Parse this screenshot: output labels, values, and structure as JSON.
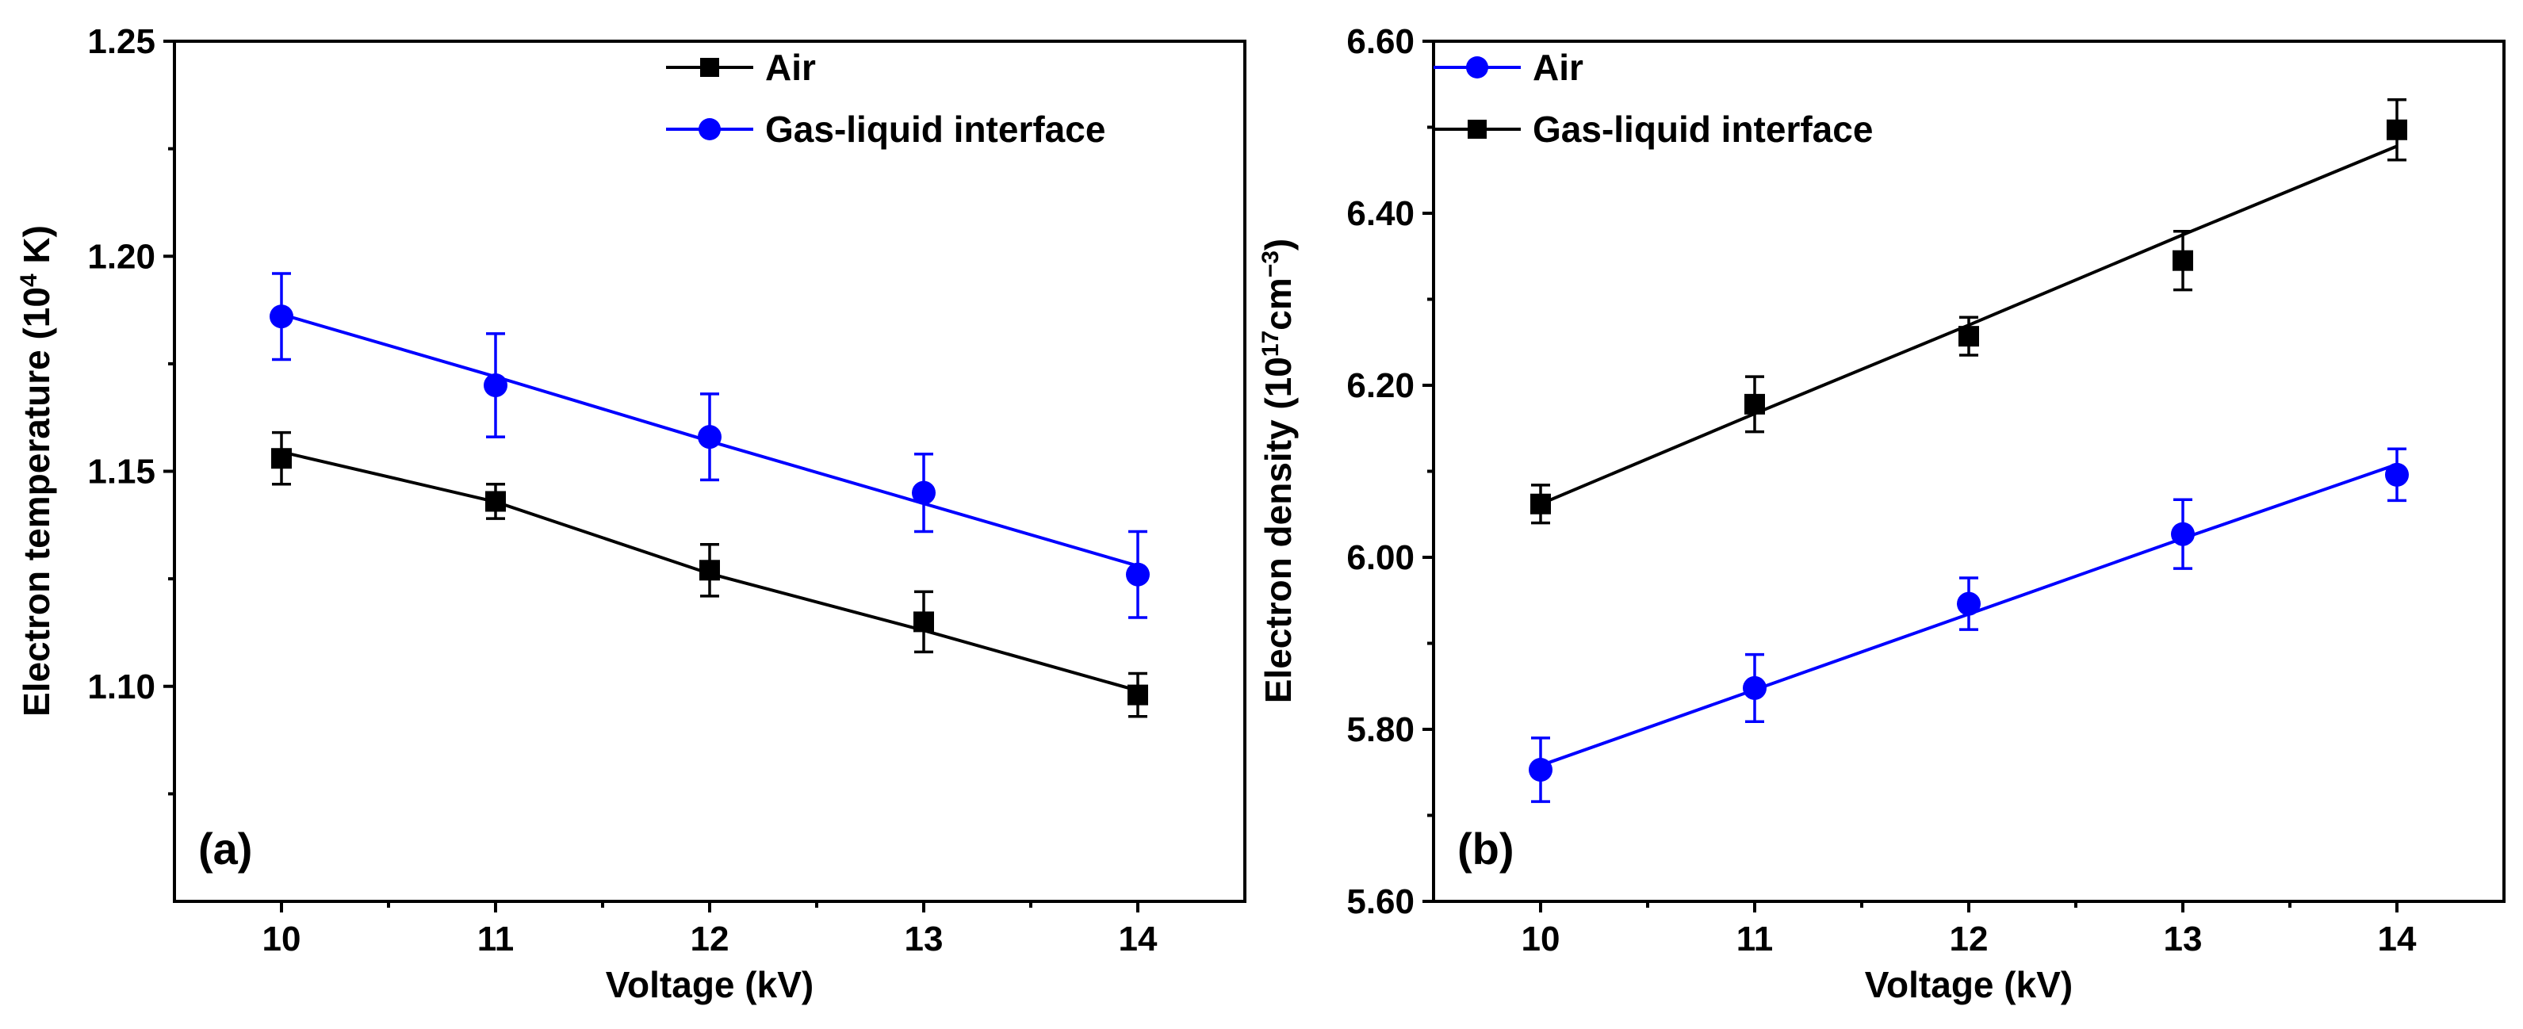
{
  "chart_data": [
    {
      "type": "line",
      "panel_label": "(a)",
      "xlabel": "Voltage (kV)",
      "ylabel_main": "Electron temperature (10",
      "ylabel_sup": "4",
      "ylabel_tail": " K)",
      "x": [
        10,
        11,
        12,
        13,
        14
      ],
      "xlim": [
        9.5,
        14.5
      ],
      "ylim": [
        1.05,
        1.25
      ],
      "x_ticks": [
        10,
        11,
        12,
        13,
        14
      ],
      "y_ticks": [
        1.1,
        1.15,
        1.2,
        1.25
      ],
      "y_tick_labels": [
        "1.10",
        "1.15",
        "1.20",
        "1.25"
      ],
      "legend_position": "top-right",
      "series": [
        {
          "name": "Air",
          "color": "#000000",
          "marker": "square",
          "values": [
            1.153,
            1.143,
            1.127,
            1.115,
            1.098
          ],
          "errors": [
            0.006,
            0.004,
            0.006,
            0.007,
            0.005
          ],
          "fit": [
            1.1545,
            1.1429,
            1.1262,
            1.113,
            1.099
          ]
        },
        {
          "name": "Gas-liquid interface",
          "color": "#0000ff",
          "marker": "circle",
          "values": [
            1.186,
            1.17,
            1.158,
            1.145,
            1.126
          ],
          "errors": [
            0.01,
            0.012,
            0.01,
            0.009,
            0.01
          ],
          "fit": [
            1.1865,
            1.172,
            1.157,
            1.1425,
            1.128
          ]
        }
      ]
    },
    {
      "type": "line",
      "panel_label": "(b)",
      "xlabel": "Voltage (kV)",
      "ylabel_main": "Electron density (10",
      "ylabel_sup": "17",
      "ylabel_mid": "cm",
      "ylabel_sup2": "−3",
      "ylabel_tail": ")",
      "x": [
        10,
        11,
        12,
        13,
        14
      ],
      "xlim": [
        9.5,
        14.5
      ],
      "ylim": [
        5.6,
        6.6
      ],
      "x_ticks": [
        10,
        11,
        12,
        13,
        14
      ],
      "y_ticks": [
        5.6,
        5.8,
        6.0,
        6.2,
        6.4,
        6.6
      ],
      "y_tick_labels": [
        "5.60",
        "5.80",
        "6.00",
        "6.20",
        "6.40",
        "6.60"
      ],
      "legend_position": "top-left",
      "series": [
        {
          "name": "Air",
          "color": "#0000ff",
          "marker": "circle",
          "values": [
            5.753,
            5.848,
            5.946,
            6.027,
            6.096
          ],
          "errors": [
            0.037,
            0.039,
            0.03,
            0.04,
            0.03
          ],
          "fit": [
            5.758,
            5.846,
            5.934,
            6.022,
            6.108
          ]
        },
        {
          "name": "Gas-liquid interface",
          "color": "#000000",
          "marker": "square",
          "values": [
            6.062,
            6.178,
            6.257,
            6.345,
            6.497
          ],
          "errors": [
            0.022,
            0.032,
            0.022,
            0.034,
            0.035
          ],
          "fit": [
            6.062,
            6.167,
            6.27,
            6.375,
            6.478
          ]
        }
      ]
    }
  ]
}
